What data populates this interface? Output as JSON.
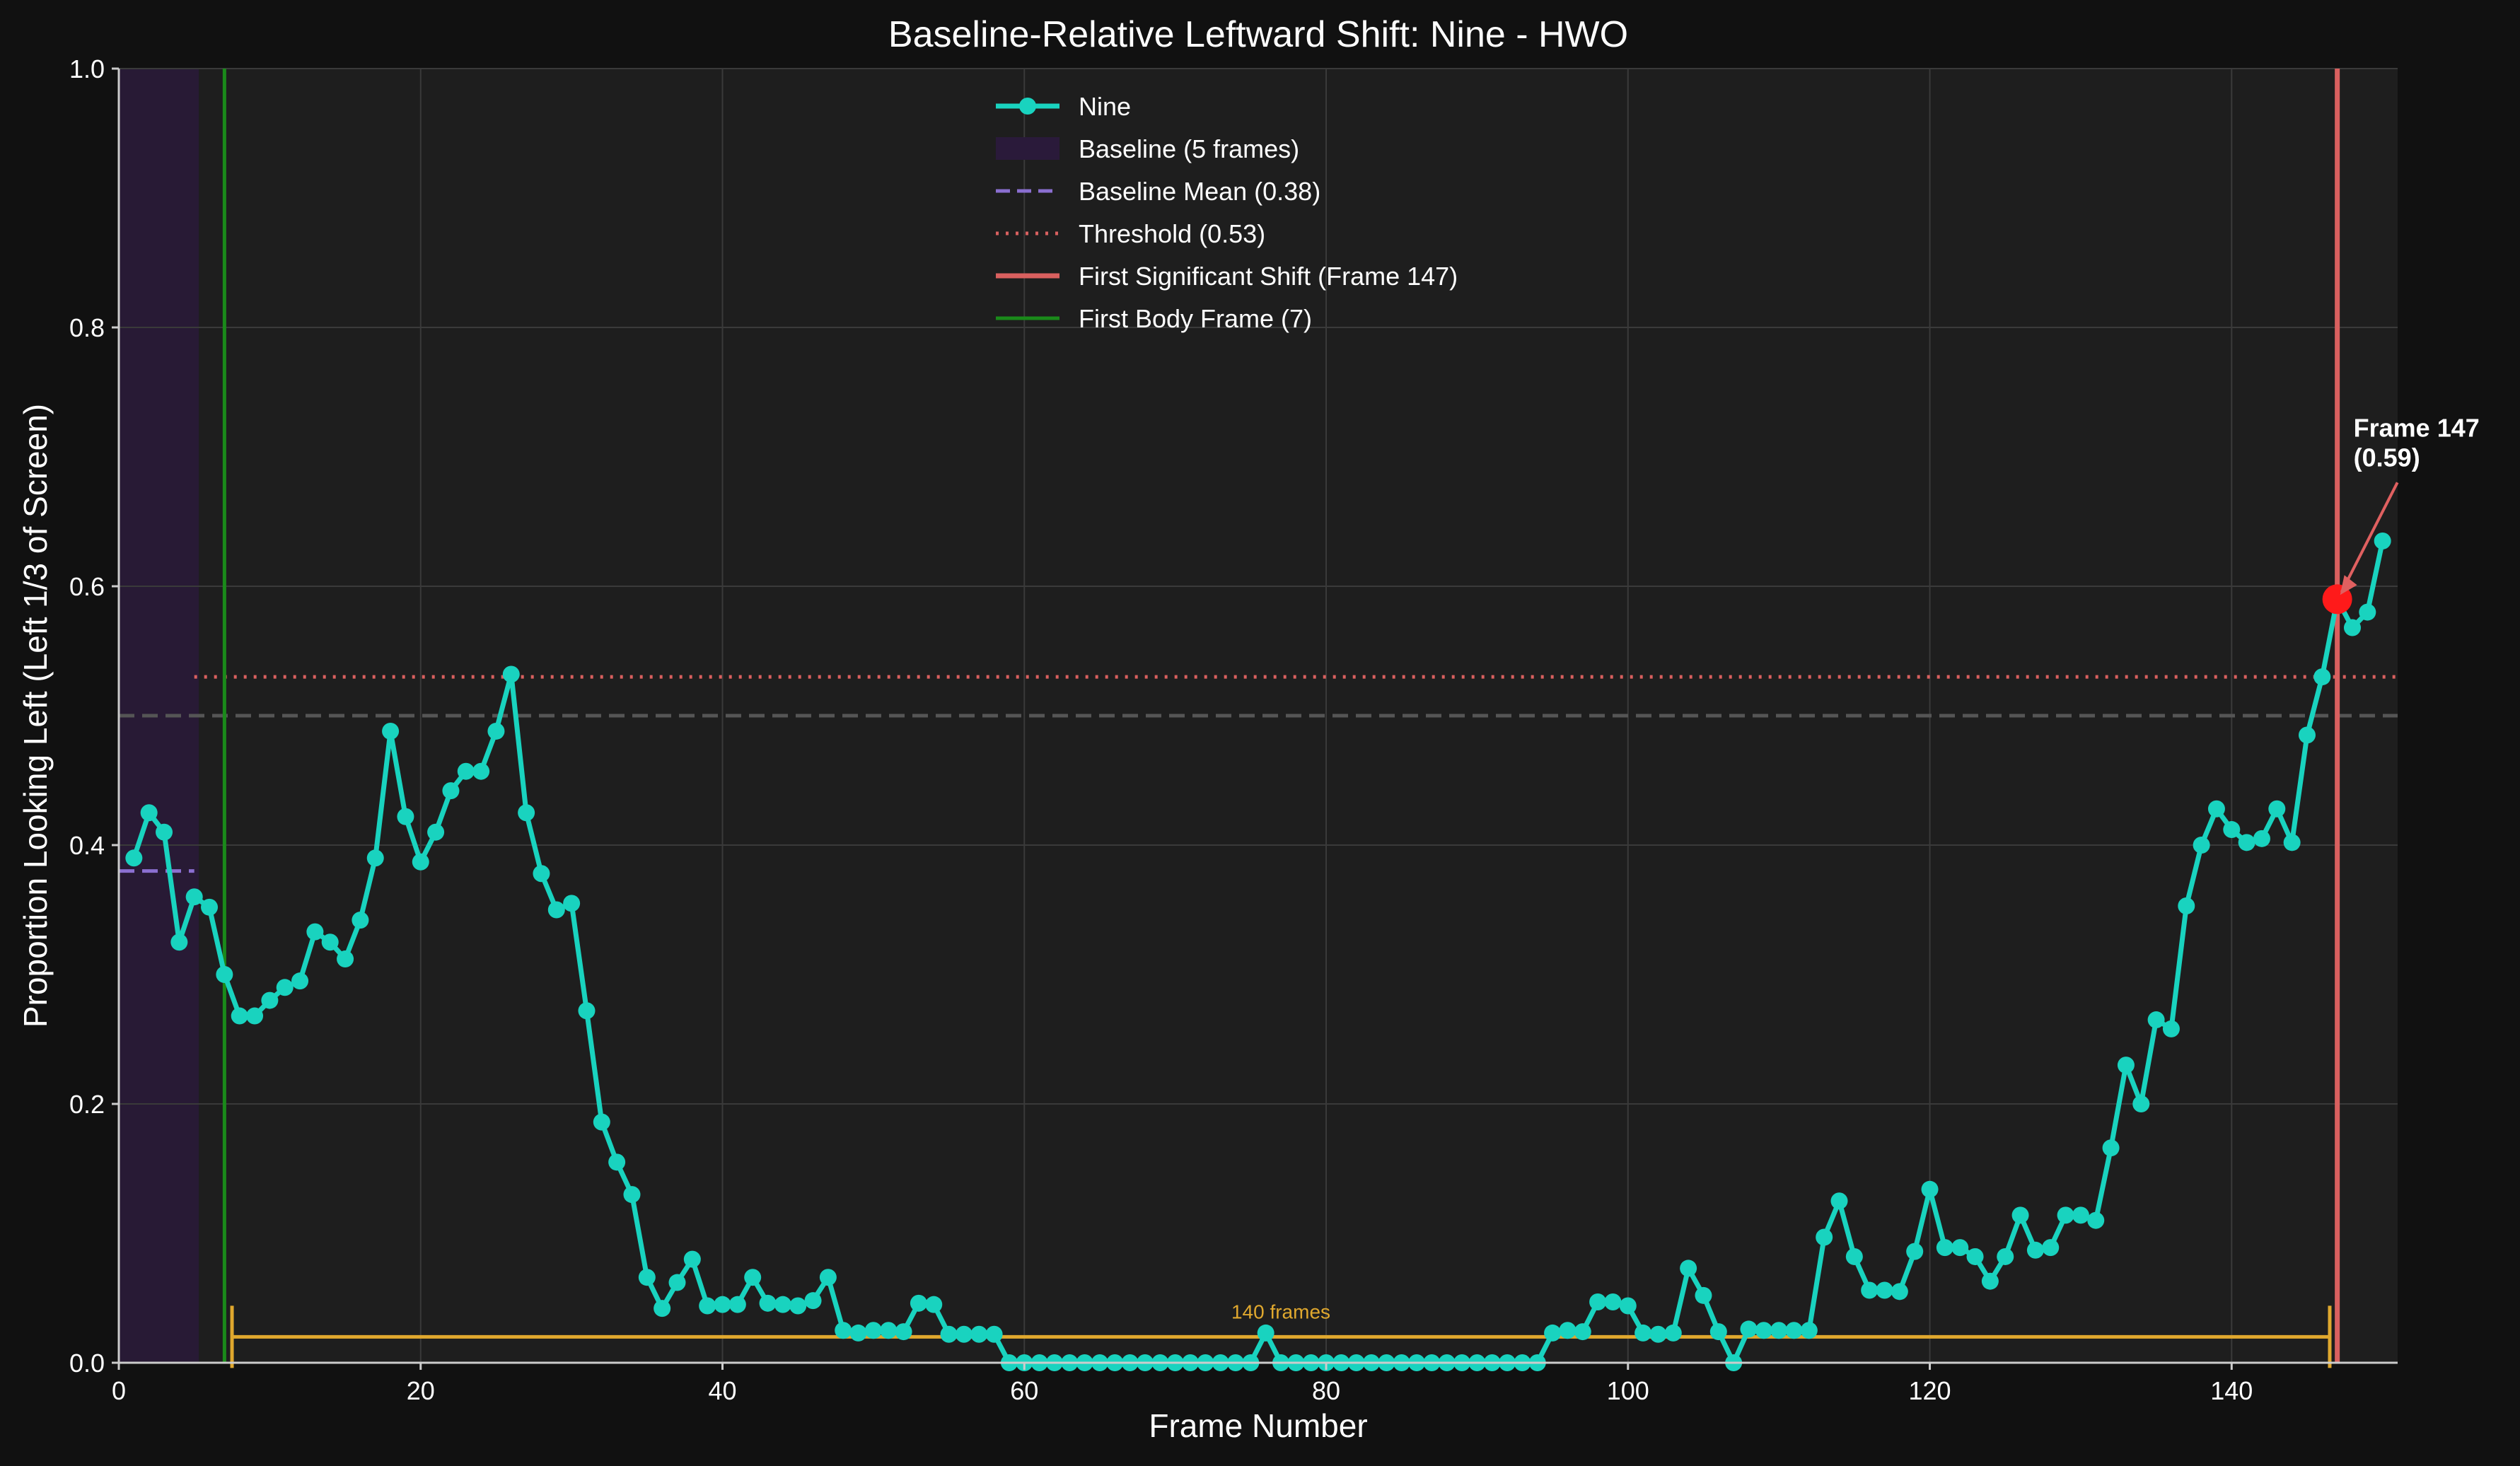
{
  "chart_data": {
    "type": "line",
    "title": "Baseline-Relative Leftward Shift: Nine - HWO",
    "xlabel": "Frame Number",
    "ylabel": "Proportion Looking Left (Left 1/3 of Screen)",
    "xlim": [
      0,
      151
    ],
    "ylim": [
      0,
      1.0
    ],
    "x_ticks": [
      0,
      20,
      40,
      60,
      80,
      100,
      120,
      140
    ],
    "y_ticks": [
      0.0,
      0.2,
      0.4,
      0.6,
      0.8,
      1.0
    ],
    "grid": true,
    "legend_position": "top-center",
    "series": [
      {
        "name": "Nine",
        "color": "#19d3bf",
        "x": [
          1,
          2,
          3,
          4,
          5,
          6,
          7,
          8,
          9,
          10,
          11,
          12,
          13,
          14,
          15,
          16,
          17,
          18,
          19,
          20,
          21,
          22,
          23,
          24,
          25,
          26,
          27,
          28,
          29,
          30,
          31,
          32,
          33,
          34,
          35,
          36,
          37,
          38,
          39,
          40,
          41,
          42,
          43,
          44,
          45,
          46,
          47,
          48,
          49,
          50,
          51,
          52,
          53,
          54,
          55,
          56,
          57,
          58,
          59,
          60,
          61,
          62,
          63,
          64,
          65,
          66,
          67,
          68,
          69,
          70,
          71,
          72,
          73,
          74,
          75,
          76,
          77,
          78,
          79,
          80,
          81,
          82,
          83,
          84,
          85,
          86,
          87,
          88,
          89,
          90,
          91,
          92,
          93,
          94,
          95,
          96,
          97,
          98,
          99,
          100,
          101,
          102,
          103,
          104,
          105,
          106,
          107,
          108,
          109,
          110,
          111,
          112,
          113,
          114,
          115,
          116,
          117,
          118,
          119,
          120,
          121,
          122,
          123,
          124,
          125,
          126,
          127,
          128,
          129,
          130,
          131,
          132,
          133,
          134,
          135,
          136,
          137,
          138,
          139,
          140,
          141,
          142,
          143,
          144,
          145,
          146,
          147,
          148,
          149,
          150
        ],
        "values": [
          0.39,
          0.425,
          0.41,
          0.325,
          0.36,
          0.352,
          0.3,
          0.268,
          0.268,
          0.28,
          0.29,
          0.295,
          0.333,
          0.325,
          0.312,
          0.342,
          0.39,
          0.488,
          0.422,
          0.387,
          0.41,
          0.442,
          0.457,
          0.457,
          0.488,
          0.532,
          0.425,
          0.378,
          0.35,
          0.355,
          0.272,
          0.186,
          0.155,
          0.13,
          0.066,
          0.042,
          0.062,
          0.08,
          0.044,
          0.045,
          0.045,
          0.066,
          0.046,
          0.045,
          0.044,
          0.048,
          0.066,
          0.025,
          0.023,
          0.025,
          0.025,
          0.024,
          0.046,
          0.045,
          0.022,
          0.022,
          0.022,
          0.022,
          0.0,
          0.0,
          0.0,
          0.0,
          0.0,
          0.0,
          0.0,
          0.0,
          0.0,
          0.0,
          0.0,
          0.0,
          0.0,
          0.0,
          0.0,
          0.0,
          0.0,
          0.023,
          0.0,
          0.0,
          0.0,
          0.0,
          0.0,
          0.0,
          0.0,
          0.0,
          0.0,
          0.0,
          0.0,
          0.0,
          0.0,
          0.0,
          0.0,
          0.0,
          0.0,
          0.0,
          0.023,
          0.025,
          0.024,
          0.047,
          0.047,
          0.044,
          0.023,
          0.022,
          0.023,
          0.073,
          0.052,
          0.024,
          0.0,
          0.026,
          0.025,
          0.025,
          0.025,
          0.025,
          0.097,
          0.125,
          0.082,
          0.056,
          0.056,
          0.055,
          0.086,
          0.134,
          0.089,
          0.089,
          0.082,
          0.063,
          0.082,
          0.114,
          0.087,
          0.089,
          0.114,
          0.114,
          0.11,
          0.166,
          0.23,
          0.2,
          0.265,
          0.258,
          0.353,
          0.4,
          0.428,
          0.412,
          0.402,
          0.405,
          0.428,
          0.402,
          0.485,
          0.53,
          0.59,
          0.568,
          0.58,
          0.635
        ]
      }
    ],
    "baseline": {
      "label": "Baseline (5 frames)",
      "x_start": 0,
      "x_end": 5.3,
      "color": "#2a1a3a"
    },
    "baseline_mean": {
      "label": "Baseline Mean (0.38)",
      "value": 0.38,
      "x_start": 0,
      "x_end": 5,
      "color": "#8a6fd0"
    },
    "threshold": {
      "label": "Threshold (0.53)",
      "value": 0.53,
      "x_start": 5,
      "color": "#d9605f"
    },
    "reference_line": {
      "value": 0.5,
      "color": "#555555"
    },
    "first_shift": {
      "label": "First Significant Shift (Frame 147)",
      "x": 147,
      "y": 0.59,
      "color": "#d9605f"
    },
    "first_body": {
      "label": "First Body Frame (7)",
      "x": 7,
      "color": "#1a8a1a"
    },
    "annotation": {
      "line1": "Frame 147",
      "line2": "(0.59)",
      "x": 147,
      "y": 0.59
    },
    "span": {
      "label": "140 frames",
      "x_start": 7.5,
      "x_end": 146.5,
      "y": 0.02,
      "color": "#e0a82e"
    }
  }
}
